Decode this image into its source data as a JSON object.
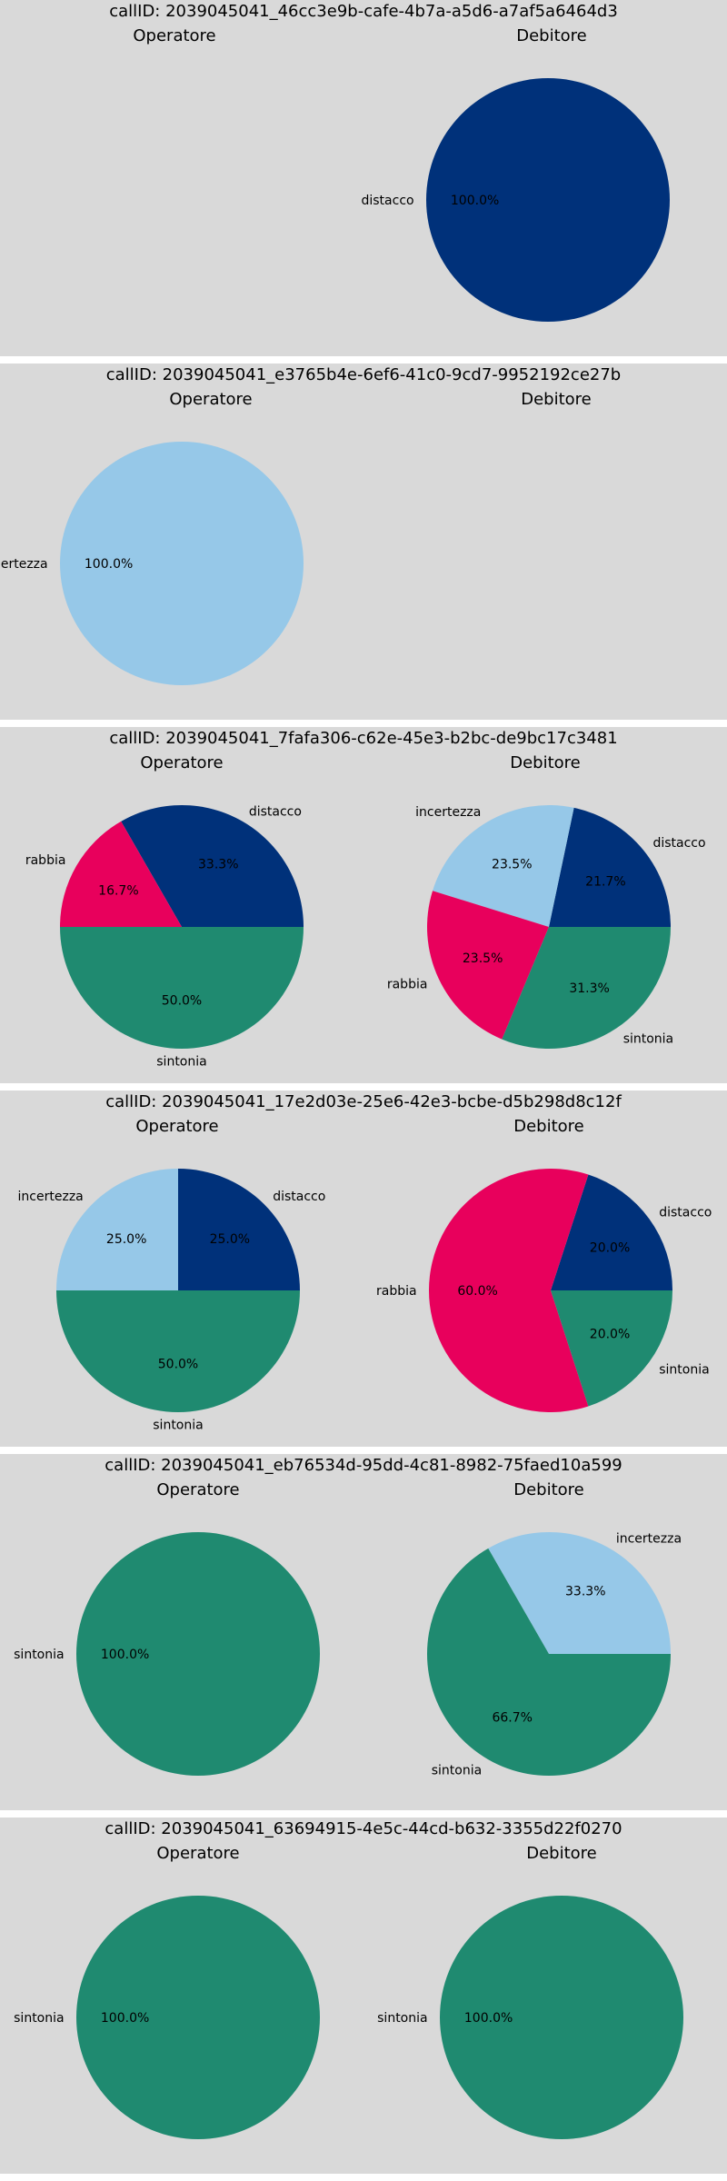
{
  "colors": {
    "distacco": "#00317a",
    "incertezza": "#96c8e8",
    "rabbia": "#e8005c",
    "sintonia": "#1f8a70"
  },
  "chart_data": [
    {
      "type": "pie",
      "title": "callID: 2039045041_46cc3e9b-cafe-4b7a-a5d6-a7af5a6464d3",
      "subplots": [
        {
          "name": "Operatore",
          "slices": []
        },
        {
          "name": "Debitore",
          "slices": [
            {
              "label": "distacco",
              "value": 100.0
            }
          ]
        }
      ]
    },
    {
      "type": "pie",
      "title": "callID: 2039045041_e3765b4e-6ef6-41c0-9cd7-9952192ce27b",
      "subplots": [
        {
          "name": "Operatore",
          "slices": [
            {
              "label": "incertezza",
              "value": 100.0
            }
          ]
        },
        {
          "name": "Debitore",
          "slices": []
        }
      ]
    },
    {
      "type": "pie",
      "title": "callID: 2039045041_7fafa306-c62e-45e3-b2bc-de9bc17c3481",
      "subplots": [
        {
          "name": "Operatore",
          "slices": [
            {
              "label": "distacco",
              "value": 33.3
            },
            {
              "label": "rabbia",
              "value": 16.7
            },
            {
              "label": "sintonia",
              "value": 50.0
            }
          ]
        },
        {
          "name": "Debitore",
          "slices": [
            {
              "label": "distacco",
              "value": 21.7
            },
            {
              "label": "incertezza",
              "value": 23.5
            },
            {
              "label": "rabbia",
              "value": 23.5
            },
            {
              "label": "sintonia",
              "value": 31.3
            }
          ]
        }
      ]
    },
    {
      "type": "pie",
      "title": "callID: 2039045041_17e2d03e-25e6-42e3-bcbe-d5b298d8c12f",
      "subplots": [
        {
          "name": "Operatore",
          "slices": [
            {
              "label": "distacco",
              "value": 25.0
            },
            {
              "label": "incertezza",
              "value": 25.0
            },
            {
              "label": "sintonia",
              "value": 50.0
            }
          ]
        },
        {
          "name": "Debitore",
          "slices": [
            {
              "label": "distacco",
              "value": 20.0
            },
            {
              "label": "rabbia",
              "value": 60.0
            },
            {
              "label": "sintonia",
              "value": 20.0
            }
          ]
        }
      ]
    },
    {
      "type": "pie",
      "title": "callID: 2039045041_eb76534d-95dd-4c81-8982-75faed10a599",
      "subplots": [
        {
          "name": "Operatore",
          "slices": [
            {
              "label": "sintonia",
              "value": 100.0
            }
          ]
        },
        {
          "name": "Debitore",
          "slices": [
            {
              "label": "incertezza",
              "value": 33.3
            },
            {
              "label": "sintonia",
              "value": 66.7
            }
          ]
        }
      ]
    },
    {
      "type": "pie",
      "title": "callID: 2039045041_63694915-4e5c-44cd-b632-3355d22f0270",
      "subplots": [
        {
          "name": "Operatore",
          "slices": [
            {
              "label": "sintonia",
              "value": 100.0
            }
          ]
        },
        {
          "name": "Debitore",
          "slices": [
            {
              "label": "sintonia",
              "value": 100.0
            }
          ]
        }
      ]
    }
  ]
}
